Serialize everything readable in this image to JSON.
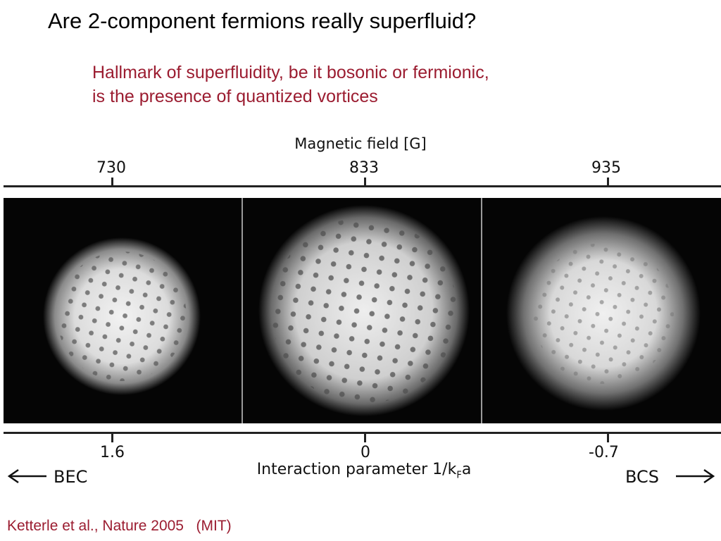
{
  "slide": {
    "title": "Are 2-component fermions really superfluid?",
    "subtitle_lines": [
      "Hallmark of superfluidity, be it bosonic or fermionic,",
      "is the presence of quantized vortices"
    ],
    "citation": "Ketterle et al., Nature 2005   (MIT)",
    "accent_color": "#9b1c30"
  },
  "figure": {
    "top_axis": {
      "label": "Magnetic field [G]",
      "ticks": [
        "730",
        "833",
        "935"
      ]
    },
    "bottom_axis": {
      "label_prefix": "Interaction parameter 1/k",
      "label_subscript": "F",
      "label_suffix": "a",
      "ticks": [
        "1.6",
        "0",
        "-0.7"
      ]
    },
    "left_regime": "BEC",
    "right_regime": "BCS",
    "left_arrow_icon": "arrow-left-icon",
    "right_arrow_icon": "arrow-right-icon"
  }
}
